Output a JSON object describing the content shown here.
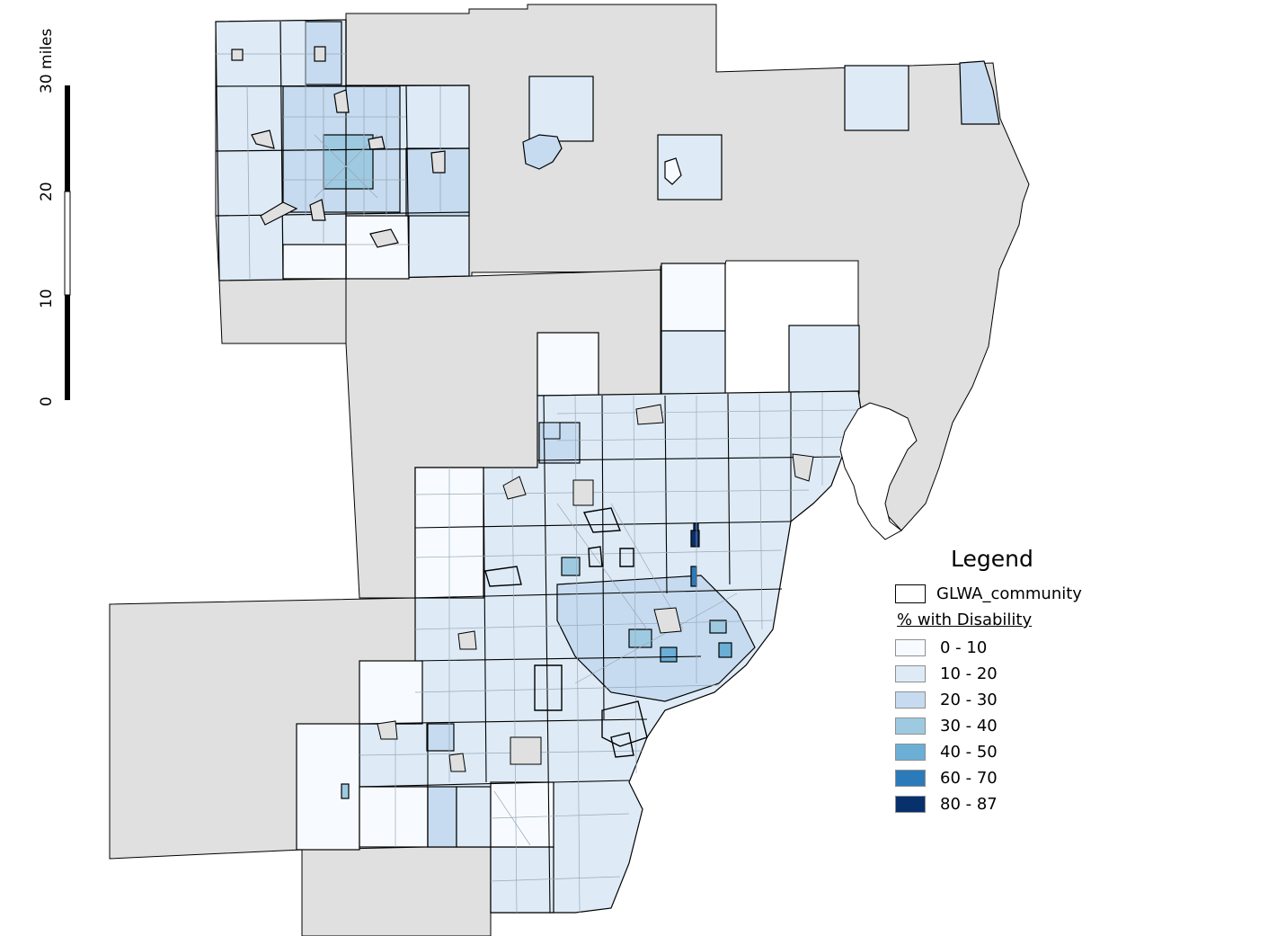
{
  "legend": {
    "title": "Legend",
    "boundary_layer": "GLWA_community",
    "choropleth_title": "% with Disability",
    "classes": [
      {
        "label": "0 - 10",
        "color": "#f7fbff"
      },
      {
        "label": "10 - 20",
        "color": "#deebf7"
      },
      {
        "label": "20 - 30",
        "color": "#c6dbef"
      },
      {
        "label": "30 - 40",
        "color": "#9ecae1"
      },
      {
        "label": "40 - 50",
        "color": "#6baed6"
      },
      {
        "label": "60 - 70",
        "color": "#2b7bba"
      },
      {
        "label": "80 - 87",
        "color": "#08306b"
      }
    ]
  },
  "scale_bar": {
    "labels": [
      "0",
      "10",
      "20",
      "30 miles"
    ]
  },
  "colors": {
    "nodata": "#e0e0e0",
    "county_border": "#000000",
    "tract_border": "#9aa8b8"
  }
}
